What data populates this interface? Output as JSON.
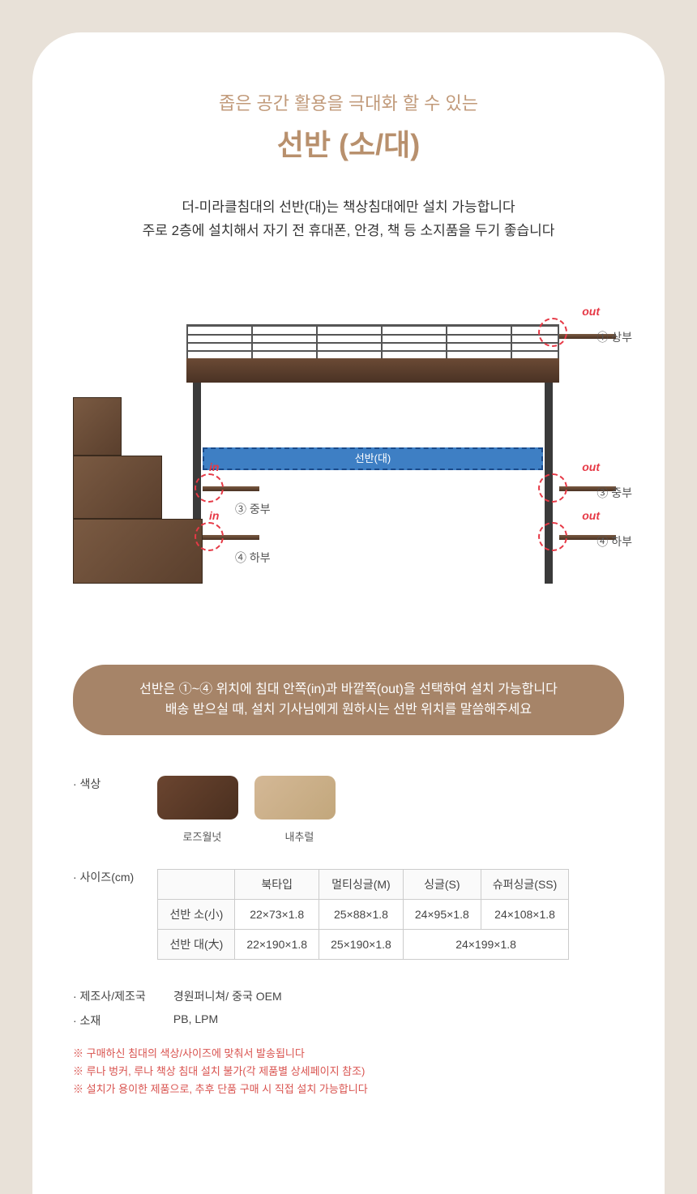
{
  "header": {
    "subtitle": "좁은 공간 활용을 극대화 할 수 있는",
    "title": "선반 (소/대)"
  },
  "description": {
    "line1": "더-미라클침대의 선반(대)는 책상침대에만 설치 가능합니다",
    "line2": "주로 2층에 설치해서 자기 전 휴대폰, 안경, 책 등 소지품을 두기 좋습니다"
  },
  "diagram": {
    "shelf_bar_label": "선반(대)",
    "annotations": {
      "out_top": {
        "tag": "out",
        "label": "① 상부"
      },
      "out_mid": {
        "tag": "out",
        "label": "③ 중부"
      },
      "out_bot": {
        "tag": "out",
        "label": "④ 하부"
      },
      "in_mid": {
        "tag": "in",
        "label": "③ 중부"
      },
      "in_bot": {
        "tag": "in",
        "label": "④ 하부"
      }
    }
  },
  "notice": {
    "line1": "선반은 ①~④ 위치에 침대 안쪽(in)과 바깥쪽(out)을 선택하여 설치 가능합니다",
    "line2": "배송 받으실 때, 설치 기사님에게 원하시는 선반 위치를 말씀해주세요"
  },
  "colors": {
    "label": "· 색상",
    "swatches": [
      {
        "name": "로즈월넛",
        "bg": "linear-gradient(135deg,#6b4530 0%,#4a2f1f 100%)"
      },
      {
        "name": "내추럴",
        "bg": "linear-gradient(135deg,#d4b896 0%,#c2a77c 100%)"
      }
    ]
  },
  "size": {
    "label": "· 사이즈(cm)",
    "headers": [
      "",
      "북타입",
      "멀티싱글(M)",
      "싱글(S)",
      "슈퍼싱글(SS)"
    ],
    "rows": [
      {
        "head": "선반 소(小)",
        "cells": [
          "22×73×1.8",
          "25×88×1.8",
          "24×95×1.8",
          "24×108×1.8"
        ],
        "span": [
          1,
          1,
          1,
          1
        ]
      },
      {
        "head": "선반 대(大)",
        "cells": [
          "22×190×1.8",
          "25×190×1.8",
          "24×199×1.8"
        ],
        "span": [
          1,
          1,
          2
        ]
      }
    ]
  },
  "meta": {
    "manufacturer_label": "· 제조사/제조국",
    "manufacturer_value": "경원퍼니쳐/ 중국 OEM",
    "material_label": "· 소재",
    "material_value": "PB, LPM"
  },
  "warnings": [
    "※ 구매하신 침대의 색상/사이즈에 맞춰서 발송됩니다",
    "※ 루나 벙커, 루나 책상 침대 설치 불가(각 제품별 상세페이지 참조)",
    "※ 설치가 용이한 제품으로, 추후 단품 구매 시 직접 설치 가능합니다"
  ]
}
